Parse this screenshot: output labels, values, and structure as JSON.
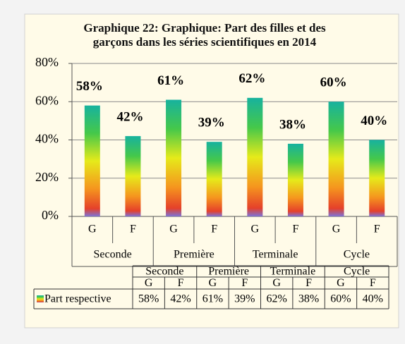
{
  "chart_data": {
    "type": "bar",
    "title": "Graphique 22: Graphique: Part des filles et des garçons dans les séries scientifiques en 2014",
    "categories": [
      "G",
      "F",
      "G",
      "F",
      "G",
      "F",
      "G",
      "F"
    ],
    "groups": [
      "Seconde",
      "Première",
      "Terminale",
      "Cycle"
    ],
    "series": [
      {
        "name": "Part respective",
        "values": [
          58,
          42,
          61,
          39,
          62,
          38,
          60,
          40
        ],
        "value_labels": [
          "58%",
          "42%",
          "61%",
          "39%",
          "62%",
          "38%",
          "60%",
          "40%"
        ]
      }
    ],
    "ylim": [
      0,
      80
    ],
    "yticks": [
      {
        "value": 0,
        "label": "0%"
      },
      {
        "value": 20,
        "label": "20%"
      },
      {
        "value": 40,
        "label": "40%"
      },
      {
        "value": 60,
        "label": "60%"
      },
      {
        "value": 80,
        "label": "80%"
      }
    ],
    "grid": true,
    "data_table": true
  }
}
